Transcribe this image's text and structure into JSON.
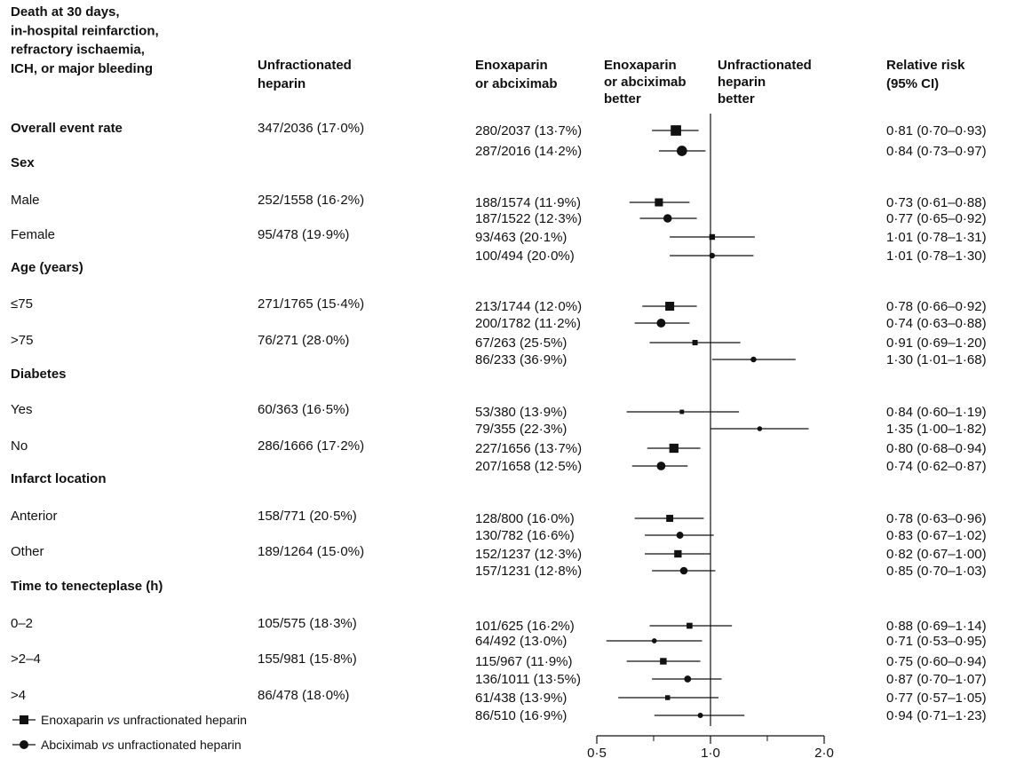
{
  "chart_data": {
    "type": "forest",
    "headers": {
      "outcome": [
        "Death at 30 days,",
        "in-hospital reinfarction,",
        "refractory ischaemia,",
        "ICH, or major bleeding"
      ],
      "ufh": [
        "Unfractionated",
        "heparin"
      ],
      "treatment": [
        "Enoxaparin",
        "or abciximab"
      ],
      "left_better": [
        "Enoxaparin",
        "or abciximab",
        "better"
      ],
      "right_better": [
        "Unfractionated",
        "heparin",
        "better"
      ],
      "rr": [
        "Relative risk",
        "(95% CI)"
      ]
    },
    "x_axis": {
      "scale": "log",
      "ticks": [
        "0·5",
        "1·0",
        "2·0"
      ],
      "tick_values": [
        0.5,
        1.0,
        2.0
      ],
      "reference": 1.0
    },
    "legend": [
      {
        "label_parts": [
          "Enoxaparin ",
          "vs",
          " unfractionated heparin"
        ],
        "marker": "square"
      },
      {
        "label_parts": [
          "Abciximab ",
          "vs",
          " unfractionated heparin"
        ],
        "marker": "circle"
      }
    ],
    "groups": [
      {
        "title": "Overall event rate",
        "bold": true,
        "ufh": "347/2036 (17·0%)",
        "enox": {
          "events": "280/2037 (13·7%)",
          "rr": 0.81,
          "lo": 0.7,
          "hi": 0.93,
          "text": "0·81 (0·70–0·93)"
        },
        "abci": {
          "events": "287/2016 (14·2%)",
          "rr": 0.84,
          "lo": 0.73,
          "hi": 0.97,
          "text": "0·84 (0·73–0·97)"
        }
      },
      {
        "heading": "Sex"
      },
      {
        "title": "Male",
        "ufh": "252/1558 (16·2%)",
        "enox": {
          "events": "188/1574 (11·9%)",
          "rr": 0.73,
          "lo": 0.61,
          "hi": 0.88,
          "text": "0·73 (0·61–0·88)"
        },
        "abci": {
          "events": "187/1522 (12·3%)",
          "rr": 0.77,
          "lo": 0.65,
          "hi": 0.92,
          "text": "0·77 (0·65–0·92)"
        }
      },
      {
        "title": "Female",
        "ufh": "95/478 (19·9%)",
        "enox": {
          "events": "93/463 (20·1%)",
          "rr": 1.01,
          "lo": 0.78,
          "hi": 1.31,
          "text": "1·01 (0·78–1·31)"
        },
        "abci": {
          "events": "100/494 (20·0%)",
          "rr": 1.01,
          "lo": 0.78,
          "hi": 1.3,
          "text": "1·01 (0·78–1·30)"
        }
      },
      {
        "heading": "Age (years)"
      },
      {
        "title": "≤75",
        "ufh": "271/1765 (15·4%)",
        "enox": {
          "events": "213/1744 (12·0%)",
          "rr": 0.78,
          "lo": 0.66,
          "hi": 0.92,
          "text": "0·78 (0·66–0·92)"
        },
        "abci": {
          "events": "200/1782 (11·2%)",
          "rr": 0.74,
          "lo": 0.63,
          "hi": 0.88,
          "text": "0·74 (0·63–0·88)"
        }
      },
      {
        "title": ">75",
        "ufh": "76/271 (28·0%)",
        "enox": {
          "events": "67/263 (25·5%)",
          "rr": 0.91,
          "lo": 0.69,
          "hi": 1.2,
          "text": "0·91 (0·69–1·20)"
        },
        "abci": {
          "events": "86/233 (36·9%)",
          "rr": 1.3,
          "lo": 1.01,
          "hi": 1.68,
          "text": "1·30 (1·01–1·68)"
        }
      },
      {
        "heading": "Diabetes"
      },
      {
        "title": "Yes",
        "ufh": "60/363 (16·5%)",
        "enox": {
          "events": "53/380 (13·9%)",
          "rr": 0.84,
          "lo": 0.6,
          "hi": 1.19,
          "text": "0·84 (0·60–1·19)"
        },
        "abci": {
          "events": "79/355 (22·3%)",
          "rr": 1.35,
          "lo": 1.0,
          "hi": 1.82,
          "text": "1·35 (1·00–1·82)"
        }
      },
      {
        "title": "No",
        "ufh": "286/1666 (17·2%)",
        "enox": {
          "events": "227/1656 (13·7%)",
          "rr": 0.8,
          "lo": 0.68,
          "hi": 0.94,
          "text": "0·80 (0·68–0·94)"
        },
        "abci": {
          "events": "207/1658 (12·5%)",
          "rr": 0.74,
          "lo": 0.62,
          "hi": 0.87,
          "text": "0·74 (0·62–0·87)"
        }
      },
      {
        "heading": "Infarct location"
      },
      {
        "title": "Anterior",
        "ufh": "158/771 (20·5%)",
        "enox": {
          "events": "128/800 (16·0%)",
          "rr": 0.78,
          "lo": 0.63,
          "hi": 0.96,
          "text": "0·78 (0·63–0·96)"
        },
        "abci": {
          "events": "130/782 (16·6%)",
          "rr": 0.83,
          "lo": 0.67,
          "hi": 1.02,
          "text": "0·83 (0·67–1·02)"
        }
      },
      {
        "title": "Other",
        "ufh": "189/1264 (15·0%)",
        "enox": {
          "events": "152/1237 (12·3%)",
          "rr": 0.82,
          "lo": 0.67,
          "hi": 1.0,
          "text": "0·82 (0·67–1·00)"
        },
        "abci": {
          "events": "157/1231 (12·8%)",
          "rr": 0.85,
          "lo": 0.7,
          "hi": 1.03,
          "text": "0·85 (0·70–1·03)"
        }
      },
      {
        "heading": "Time to tenecteplase (h)"
      },
      {
        "title": "0–2",
        "ufh": "105/575 (18·3%)",
        "enox": {
          "events": "101/625 (16·2%)",
          "rr": 0.88,
          "lo": 0.69,
          "hi": 1.14,
          "text": "0·88 (0·69–1·14)"
        },
        "abci": {
          "events": "64/492 (13·0%)",
          "rr": 0.71,
          "lo": 0.53,
          "hi": 0.95,
          "text": "0·71 (0·53–0·95)"
        }
      },
      {
        "title": ">2–4",
        "ufh": "155/981 (15·8%)",
        "enox": {
          "events": "115/967 (11·9%)",
          "rr": 0.75,
          "lo": 0.6,
          "hi": 0.94,
          "text": "0·75 (0·60–0·94)"
        },
        "abci": {
          "events": "136/1011 (13·5%)",
          "rr": 0.87,
          "lo": 0.7,
          "hi": 1.07,
          "text": "0·87 (0·70–1·07)"
        }
      },
      {
        "title": ">4",
        "ufh": "86/478 (18·0%)",
        "enox": {
          "events": "61/438 (13·9%)",
          "rr": 0.77,
          "lo": 0.57,
          "hi": 1.05,
          "text": "0·77 (0·57–1·05)"
        },
        "abci": {
          "events": "86/510 (16·9%)",
          "rr": 0.94,
          "lo": 0.71,
          "hi": 1.23,
          "text": "0·94 (0·71–1·23)"
        }
      }
    ]
  }
}
